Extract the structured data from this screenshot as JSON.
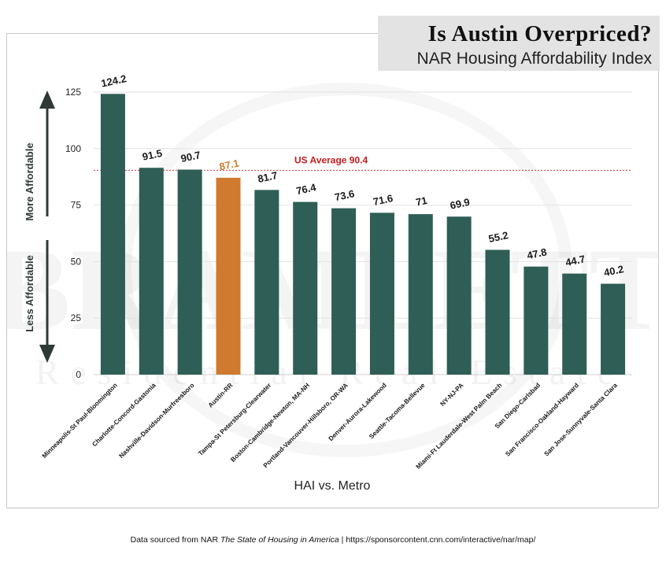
{
  "title": {
    "main": "Is Austin Overpriced?",
    "subtitle": "NAR Housing Affordability Index"
  },
  "footer": {
    "prefix": "Data sourced from NAR ",
    "source_italic": "The State of Housing in America",
    "suffix": " | https://sponsorcontent.cnn.com/interactive/nar/map/"
  },
  "watermark": {
    "brand": "BRAMLETT",
    "tagline": "Residential Real Estate"
  },
  "colors": {
    "bar": "#2e5e55",
    "highlight": "#cf7a2e",
    "average_line": "#d63a3a",
    "average_label": "#c41e1e",
    "grid": "#e2e2e2"
  },
  "chart_data": {
    "type": "bar",
    "categories": [
      "Minneapolis-St Paul-Bloomington",
      "Charlotte-Concord-Gastonia",
      "Nashville-Davidson-Murfreesboro",
      "Austin-RR",
      "Tampa-St Petersburg-Clearwater",
      "Boston-Cambridge-Newton, MA-NH",
      "Portland-Vancouver-Hillsboro, OR-WA",
      "Denver-Aurora-Lakewood",
      "Seattle-Tacoma-Bellevue",
      "NY-NJ-PA",
      "Miami-Ft Lauderdale-West Palm Beach",
      "San Diego-Carlsbad",
      "San Francisco-Oakland-Hayward",
      "San Jose-Sunnyvale-Santa Clara"
    ],
    "values": [
      124.2,
      91.5,
      90.7,
      87.1,
      81.7,
      76.4,
      73.6,
      71.6,
      71,
      69.9,
      55.2,
      47.8,
      44.7,
      40.2
    ],
    "value_labels": [
      "124.2",
      "91.5",
      "90.7",
      "87.1",
      "81.7",
      "76.4",
      "73.6",
      "71.6",
      "71",
      "69.9",
      "55.2",
      "47.8",
      "44.7",
      "40.2"
    ],
    "highlight_category": "Austin-RR",
    "xlabel": "HAI vs. Metro",
    "ylabel_top": "More Affordable",
    "ylabel_bottom": "Less Affordable",
    "ylim": [
      0,
      125
    ],
    "yticks": [
      0,
      25,
      50,
      75,
      100,
      125
    ],
    "reference_line": {
      "value": 90.4,
      "label": "US Average 90.4"
    },
    "grid": true
  }
}
